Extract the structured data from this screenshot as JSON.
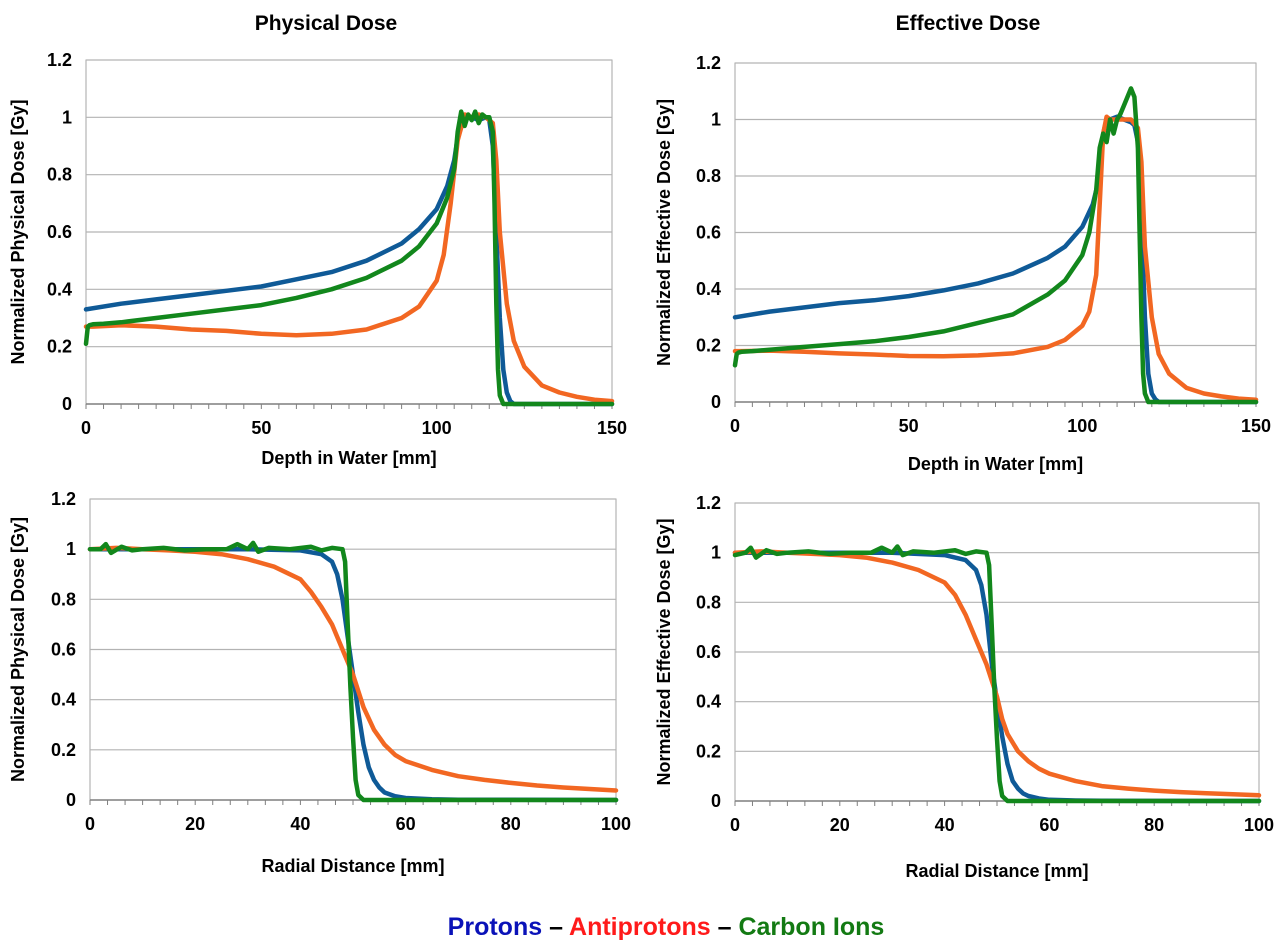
{
  "figure": {
    "column_titles": [
      "Physical Dose",
      "Effective Dose"
    ],
    "legend": {
      "separator": "–",
      "entries": [
        {
          "label": "Protons",
          "color": "#0a12b8"
        },
        {
          "label": "Antiprotons",
          "color": "#ff1a1a"
        },
        {
          "label": "Carbon Ions",
          "color": "#137a13"
        }
      ]
    },
    "series_colors": {
      "protons": "#0f5a97",
      "antiprotons": "#f26722",
      "carbon": "#12871c"
    }
  },
  "chart_data": [
    {
      "type": "line",
      "xlabel": "Depth in Water [mm]",
      "ylabel": "Normalized Physical Dose [Gy]",
      "xlim": [
        0,
        150
      ],
      "ylim": [
        0,
        1.2
      ],
      "xticks": [
        0,
        50,
        100,
        150
      ],
      "yticks": [
        0,
        0.2,
        0.4,
        0.6,
        0.8,
        1,
        1.2
      ],
      "grid": true,
      "series": [
        {
          "key": "protons",
          "x": [
            0,
            10,
            20,
            30,
            40,
            50,
            60,
            70,
            80,
            90,
            95,
            100,
            103,
            105,
            106,
            108,
            110,
            112,
            114,
            115,
            116,
            117,
            118,
            119,
            120,
            121,
            122,
            150
          ],
          "y": [
            0.33,
            0.35,
            0.365,
            0.38,
            0.395,
            0.41,
            0.435,
            0.46,
            0.5,
            0.56,
            0.61,
            0.68,
            0.76,
            0.85,
            0.93,
            1.0,
            1.0,
            0.99,
            1.0,
            0.99,
            0.9,
            0.6,
            0.3,
            0.12,
            0.04,
            0.01,
            0,
            0
          ]
        },
        {
          "key": "antiprotons",
          "x": [
            0,
            2,
            10,
            20,
            30,
            40,
            50,
            60,
            70,
            80,
            90,
            95,
            100,
            102,
            104,
            106,
            108,
            110,
            112,
            114,
            116,
            117,
            118,
            120,
            122,
            125,
            130,
            135,
            140,
            145,
            150
          ],
          "y": [
            0.27,
            0.27,
            0.275,
            0.27,
            0.26,
            0.255,
            0.245,
            0.24,
            0.245,
            0.26,
            0.3,
            0.34,
            0.43,
            0.52,
            0.7,
            0.92,
            1.01,
            1.0,
            1.01,
            1.0,
            0.98,
            0.85,
            0.6,
            0.35,
            0.22,
            0.13,
            0.065,
            0.04,
            0.025,
            0.015,
            0.01
          ]
        },
        {
          "key": "carbon",
          "x": [
            0,
            0.5,
            1,
            2,
            5,
            10,
            20,
            30,
            40,
            50,
            60,
            70,
            80,
            90,
            95,
            100,
            103,
            105,
            106,
            107,
            108,
            109,
            110,
            111,
            112,
            113,
            114,
            115,
            116,
            116.5,
            117,
            117.5,
            118,
            119,
            120,
            150
          ],
          "y": [
            0.21,
            0.27,
            0.275,
            0.278,
            0.28,
            0.285,
            0.3,
            0.315,
            0.33,
            0.345,
            0.37,
            0.4,
            0.44,
            0.5,
            0.55,
            0.63,
            0.72,
            0.82,
            0.95,
            1.02,
            0.97,
            1.01,
            0.99,
            1.02,
            0.98,
            1.01,
            1.0,
            1.0,
            0.95,
            0.7,
            0.35,
            0.12,
            0.03,
            0,
            0,
            0
          ]
        }
      ]
    },
    {
      "type": "line",
      "xlabel": "Depth in Water [mm]",
      "ylabel": "Normalized Effective Dose [Gy]",
      "xlim": [
        0,
        150
      ],
      "ylim": [
        0,
        1.2
      ],
      "xticks": [
        0,
        50,
        100,
        150
      ],
      "yticks": [
        0,
        0.2,
        0.4,
        0.6,
        0.8,
        1,
        1.2
      ],
      "grid": true,
      "series": [
        {
          "key": "protons",
          "x": [
            0,
            10,
            20,
            30,
            40,
            50,
            60,
            70,
            80,
            90,
            95,
            100,
            103,
            105,
            106,
            107,
            108,
            110,
            112,
            114,
            115,
            116,
            117,
            118,
            119,
            120,
            121,
            122,
            150
          ],
          "y": [
            0.3,
            0.32,
            0.335,
            0.35,
            0.36,
            0.375,
            0.395,
            0.42,
            0.455,
            0.51,
            0.55,
            0.62,
            0.7,
            0.8,
            0.95,
            1.0,
            1.0,
            1.01,
            1.0,
            0.99,
            0.98,
            0.92,
            0.65,
            0.3,
            0.1,
            0.03,
            0.01,
            0,
            0
          ]
        },
        {
          "key": "antiprotons",
          "x": [
            0,
            2,
            10,
            20,
            30,
            40,
            50,
            60,
            70,
            80,
            90,
            95,
            100,
            102,
            104,
            105,
            106,
            107,
            108,
            110,
            112,
            114,
            116,
            117,
            118,
            120,
            122,
            125,
            130,
            135,
            140,
            145,
            150
          ],
          "y": [
            0.18,
            0.18,
            0.182,
            0.178,
            0.172,
            0.168,
            0.163,
            0.162,
            0.165,
            0.172,
            0.195,
            0.22,
            0.27,
            0.32,
            0.45,
            0.7,
            0.95,
            1.01,
            1.0,
            1.0,
            1.0,
            1.0,
            0.97,
            0.85,
            0.55,
            0.3,
            0.17,
            0.1,
            0.05,
            0.03,
            0.02,
            0.012,
            0.008
          ]
        },
        {
          "key": "carbon",
          "x": [
            0,
            0.5,
            1,
            2,
            5,
            10,
            20,
            30,
            40,
            50,
            60,
            70,
            80,
            90,
            95,
            100,
            102,
            104,
            105,
            106,
            107,
            108,
            109,
            110,
            111,
            112,
            113,
            114,
            115,
            116,
            116.5,
            117,
            117.5,
            118,
            119,
            120,
            150
          ],
          "y": [
            0.13,
            0.17,
            0.175,
            0.178,
            0.18,
            0.185,
            0.195,
            0.205,
            0.215,
            0.23,
            0.25,
            0.28,
            0.31,
            0.38,
            0.43,
            0.52,
            0.6,
            0.75,
            0.9,
            0.95,
            0.92,
            1.0,
            0.95,
            1.0,
            1.02,
            1.05,
            1.08,
            1.11,
            1.08,
            0.9,
            0.6,
            0.3,
            0.1,
            0.03,
            0,
            0,
            0
          ]
        }
      ]
    },
    {
      "type": "line",
      "xlabel": "Radial Distance [mm]",
      "ylabel": "Normalized Physical Dose [Gy]",
      "xlim": [
        0,
        100
      ],
      "ylim": [
        0,
        1.2
      ],
      "xticks": [
        0,
        20,
        40,
        60,
        80,
        100
      ],
      "yticks": [
        0,
        0.2,
        0.4,
        0.6,
        0.8,
        1,
        1.2
      ],
      "grid": true,
      "series": [
        {
          "key": "protons",
          "x": [
            0,
            10,
            20,
            30,
            40,
            44,
            46,
            47,
            48,
            49,
            50,
            51,
            52,
            53,
            54,
            55,
            56,
            58,
            60,
            65,
            70,
            100
          ],
          "y": [
            1.0,
            1.0,
            1.0,
            1.0,
            0.995,
            0.98,
            0.95,
            0.9,
            0.8,
            0.65,
            0.5,
            0.35,
            0.22,
            0.13,
            0.08,
            0.05,
            0.03,
            0.015,
            0.008,
            0.003,
            0.001,
            0
          ]
        },
        {
          "key": "antiprotons",
          "x": [
            0,
            5,
            10,
            15,
            20,
            25,
            30,
            35,
            40,
            42,
            44,
            46,
            48,
            50,
            52,
            54,
            56,
            58,
            60,
            65,
            70,
            75,
            80,
            85,
            90,
            95,
            100
          ],
          "y": [
            1.0,
            1.005,
            1.0,
            0.995,
            0.99,
            0.98,
            0.96,
            0.93,
            0.88,
            0.83,
            0.77,
            0.7,
            0.6,
            0.5,
            0.37,
            0.28,
            0.22,
            0.18,
            0.155,
            0.12,
            0.095,
            0.08,
            0.068,
            0.058,
            0.05,
            0.044,
            0.038
          ]
        },
        {
          "key": "carbon",
          "x": [
            0,
            2,
            3,
            4,
            6,
            8,
            10,
            14,
            18,
            22,
            26,
            28,
            30,
            31,
            32,
            34,
            38,
            42,
            44,
            46,
            48,
            48.5,
            49,
            49.5,
            50,
            50.5,
            51,
            52,
            53,
            100
          ],
          "y": [
            1.0,
            1.0,
            1.02,
            0.985,
            1.01,
            0.995,
            1.0,
            1.005,
            0.995,
            1.0,
            1.0,
            1.02,
            1.0,
            1.025,
            0.99,
            1.005,
            1.0,
            1.01,
            0.995,
            1.005,
            1.0,
            0.95,
            0.7,
            0.45,
            0.25,
            0.08,
            0.02,
            0,
            0,
            0
          ]
        }
      ]
    },
    {
      "type": "line",
      "xlabel": "Radial Distance [mm]",
      "ylabel": "Normalized Effective Dose [Gy]",
      "xlim": [
        0,
        100
      ],
      "ylim": [
        0,
        1.2
      ],
      "xticks": [
        0,
        20,
        40,
        60,
        80,
        100
      ],
      "yticks": [
        0,
        0.2,
        0.4,
        0.6,
        0.8,
        1,
        1.2
      ],
      "grid": true,
      "series": [
        {
          "key": "protons",
          "x": [
            0,
            10,
            20,
            30,
            40,
            44,
            46,
            47,
            48,
            49,
            50,
            51,
            52,
            53,
            54,
            55,
            56,
            58,
            60,
            65,
            70,
            100
          ],
          "y": [
            1.0,
            1.0,
            1.0,
            1.0,
            0.99,
            0.97,
            0.93,
            0.87,
            0.75,
            0.55,
            0.4,
            0.26,
            0.15,
            0.08,
            0.05,
            0.03,
            0.02,
            0.01,
            0.005,
            0.002,
            0.001,
            0
          ]
        },
        {
          "key": "antiprotons",
          "x": [
            0,
            5,
            10,
            15,
            20,
            25,
            30,
            35,
            40,
            42,
            44,
            46,
            48,
            50,
            51,
            52,
            54,
            56,
            58,
            60,
            65,
            70,
            75,
            80,
            85,
            90,
            95,
            100
          ],
          "y": [
            1.0,
            1.005,
            1.0,
            0.995,
            0.99,
            0.98,
            0.96,
            0.93,
            0.88,
            0.83,
            0.75,
            0.65,
            0.55,
            0.42,
            0.33,
            0.27,
            0.2,
            0.16,
            0.13,
            0.11,
            0.08,
            0.06,
            0.05,
            0.042,
            0.036,
            0.031,
            0.027,
            0.023
          ]
        },
        {
          "key": "carbon",
          "x": [
            0,
            2,
            3,
            4,
            6,
            8,
            10,
            14,
            18,
            22,
            26,
            28,
            30,
            31,
            32,
            34,
            38,
            42,
            44,
            46,
            48,
            48.5,
            49,
            49.5,
            50,
            50.5,
            51,
            52,
            53,
            100
          ],
          "y": [
            0.99,
            1.0,
            1.02,
            0.98,
            1.01,
            0.995,
            1.0,
            1.005,
            0.995,
            1.0,
            1.0,
            1.02,
            1.0,
            1.025,
            0.99,
            1.005,
            1.0,
            1.01,
            0.995,
            1.005,
            1.0,
            0.95,
            0.7,
            0.45,
            0.25,
            0.08,
            0.02,
            0,
            0,
            0
          ]
        }
      ]
    }
  ]
}
